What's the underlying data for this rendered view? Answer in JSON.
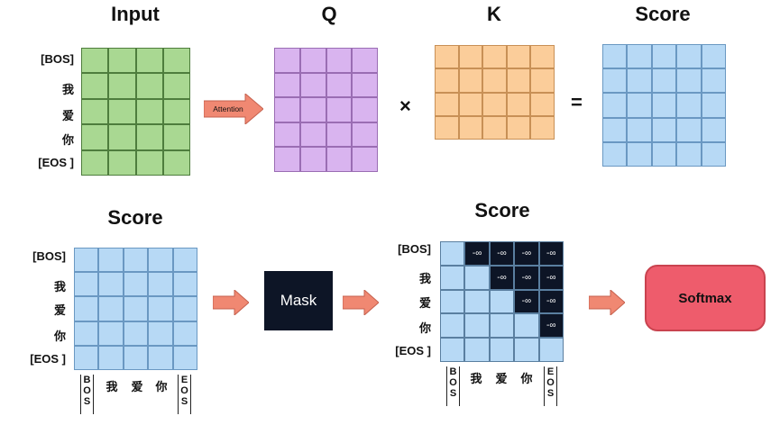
{
  "titles": {
    "input": "Input",
    "q": "Q",
    "k": "K",
    "score_top": "Score",
    "score_bottom_left": "Score",
    "score_bottom_right": "Score"
  },
  "tokens": {
    "bos": "[BOS]",
    "wo": "我",
    "ai": "爱",
    "ni": "你",
    "eos": "[EOS ]"
  },
  "column_labels": {
    "bos_letters": [
      "B",
      "O",
      "S"
    ],
    "wo": "我",
    "ai": "爱",
    "ni": "你",
    "eos_letters": [
      "E",
      "O",
      "S"
    ]
  },
  "operators": {
    "times": "×",
    "equals": "="
  },
  "arrow_label": "Attention",
  "mask_label": "Mask",
  "softmax_label": "Softmax",
  "neg_inf": "-∞",
  "masked_matrix_rows": [
    [
      false,
      true,
      true,
      true,
      true
    ],
    [
      false,
      false,
      true,
      true,
      true
    ],
    [
      false,
      false,
      false,
      true,
      true
    ],
    [
      false,
      false,
      false,
      false,
      true
    ],
    [
      false,
      false,
      false,
      false,
      false
    ]
  ],
  "colors": {
    "input": "#a9d892",
    "q": "#d9b4ef",
    "k": "#fbcd9a",
    "score": "#b7d9f5",
    "mask": "#0d1526",
    "softmax": "#ee5c6c",
    "arrow": "#f08872"
  }
}
